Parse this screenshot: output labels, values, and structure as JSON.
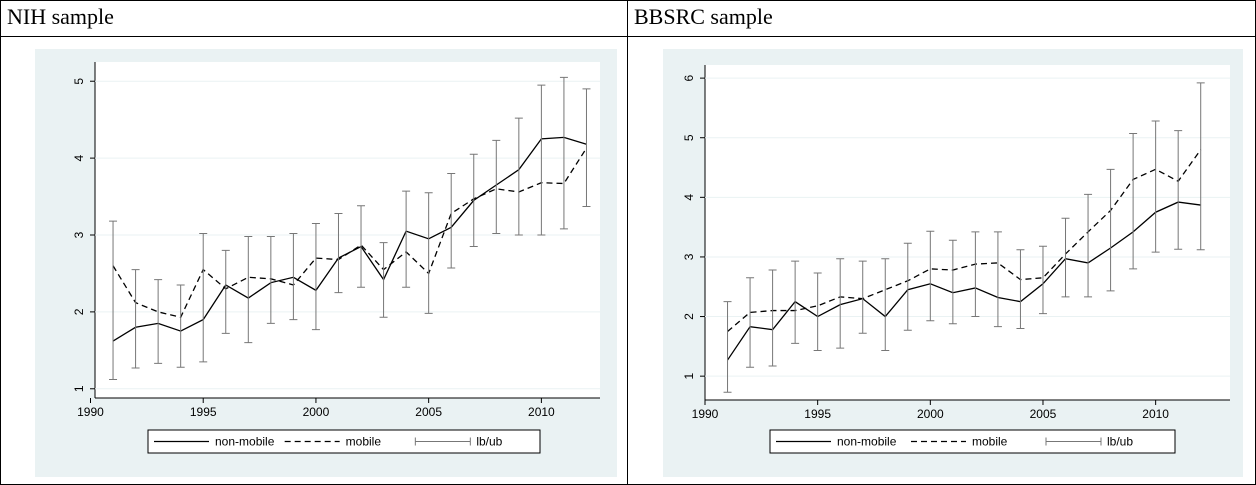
{
  "headers": [
    "NIH sample",
    "BBSRC sample"
  ],
  "chart_data": [
    {
      "type": "line",
      "x": [
        1991,
        1992,
        1993,
        1994,
        1995,
        1996,
        1997,
        1998,
        1999,
        2000,
        2001,
        2002,
        2003,
        2004,
        2005,
        2006,
        2007,
        2008,
        2009,
        2010,
        2011,
        2012
      ],
      "xlim": [
        1990.2,
        2012.6
      ],
      "xticks": [
        1990,
        1995,
        2000,
        2005,
        2010
      ],
      "ylim": [
        0.88,
        5.25
      ],
      "yticks": [
        1,
        2,
        3,
        4,
        5
      ],
      "grid": true,
      "series": [
        {
          "name": "non-mobile",
          "color": "#000000",
          "dashed": false,
          "values": [
            1.62,
            1.8,
            1.85,
            1.75,
            1.9,
            2.35,
            2.18,
            2.38,
            2.45,
            2.28,
            2.7,
            2.85,
            2.42,
            3.05,
            2.95,
            3.1,
            3.45,
            3.65,
            3.85,
            4.25,
            4.27,
            4.18
          ]
        },
        {
          "name": "mobile",
          "color": "#000000",
          "dashed": true,
          "values": [
            2.6,
            2.12,
            2.0,
            1.93,
            2.55,
            2.3,
            2.45,
            2.43,
            2.35,
            2.7,
            2.68,
            2.87,
            2.55,
            2.78,
            2.5,
            3.28,
            3.47,
            3.6,
            3.56,
            3.68,
            3.67,
            4.13
          ]
        },
        {
          "name": "lb/ub",
          "color": "#777777",
          "errorbar": true,
          "lower": [
            1.12,
            1.27,
            1.33,
            1.28,
            1.35,
            1.72,
            1.6,
            1.85,
            1.9,
            1.77,
            2.25,
            2.32,
            1.93,
            2.32,
            1.98,
            2.57,
            2.85,
            3.02,
            3.0,
            3.0,
            3.08,
            3.37
          ],
          "upper": [
            3.18,
            2.55,
            2.42,
            2.35,
            3.02,
            2.8,
            2.98,
            2.98,
            3.02,
            3.15,
            3.28,
            3.38,
            2.9,
            3.57,
            3.55,
            3.8,
            4.05,
            4.23,
            4.52,
            4.95,
            5.05,
            4.9
          ]
        }
      ]
    },
    {
      "type": "line",
      "x": [
        1991,
        1992,
        1993,
        1994,
        1995,
        1996,
        1997,
        1998,
        1999,
        2000,
        2001,
        2002,
        2003,
        2004,
        2005,
        2006,
        2007,
        2008,
        2009,
        2010,
        2011,
        2012
      ],
      "xlim": [
        1990,
        2013.3
      ],
      "xticks": [
        1990,
        1995,
        2000,
        2005,
        2010
      ],
      "ylim": [
        0.6,
        6.22
      ],
      "yticks": [
        1,
        2,
        3,
        4,
        5,
        6
      ],
      "grid": true,
      "series": [
        {
          "name": "non-mobile",
          "color": "#000000",
          "dashed": false,
          "values": [
            1.27,
            1.83,
            1.78,
            2.25,
            2.0,
            2.2,
            2.3,
            2.0,
            2.45,
            2.55,
            2.4,
            2.48,
            2.32,
            2.25,
            2.55,
            2.97,
            2.9,
            3.15,
            3.42,
            3.75,
            3.92,
            3.87
          ]
        },
        {
          "name": "mobile",
          "color": "#000000",
          "dashed": true,
          "values": [
            1.75,
            2.07,
            2.1,
            2.1,
            2.18,
            2.33,
            2.3,
            2.45,
            2.6,
            2.8,
            2.78,
            2.88,
            2.9,
            2.62,
            2.65,
            3.05,
            3.42,
            3.78,
            4.3,
            4.47,
            4.27,
            4.8
          ]
        },
        {
          "name": "lb/ub",
          "color": "#777777",
          "errorbar": true,
          "lower": [
            0.73,
            1.15,
            1.17,
            1.55,
            1.43,
            1.47,
            1.72,
            1.43,
            1.77,
            1.93,
            1.88,
            2.0,
            1.83,
            1.8,
            2.05,
            2.33,
            2.33,
            2.43,
            2.8,
            3.08,
            3.13,
            3.12
          ],
          "upper": [
            2.25,
            2.65,
            2.78,
            2.93,
            2.73,
            2.97,
            2.93,
            2.97,
            3.23,
            3.43,
            3.28,
            3.42,
            3.42,
            3.12,
            3.18,
            3.65,
            4.05,
            4.47,
            5.07,
            5.28,
            5.12,
            5.92
          ]
        }
      ]
    }
  ]
}
